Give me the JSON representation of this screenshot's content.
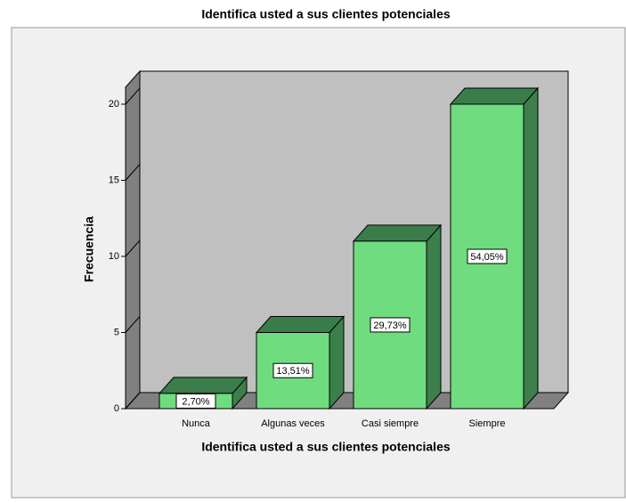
{
  "chart_data": {
    "type": "bar3d",
    "title": "Identifica usted a sus clientes potenciales",
    "xlabel": "Identifica usted a sus clientes potenciales",
    "ylabel": "Frecuencia",
    "categories": [
      "Nunca",
      "Algunas veces",
      "Casi siempre",
      "Siempre"
    ],
    "values": [
      1,
      5,
      11,
      20
    ],
    "percentages": [
      2.7,
      13.51,
      29.73,
      54.05
    ],
    "percentage_labels": [
      "2,70%",
      "13,51%",
      "29,73%",
      "54,05%"
    ],
    "color": "#70dc80",
    "ylim": [
      0,
      20
    ],
    "yticks": [
      0,
      5,
      10,
      15,
      20
    ]
  }
}
